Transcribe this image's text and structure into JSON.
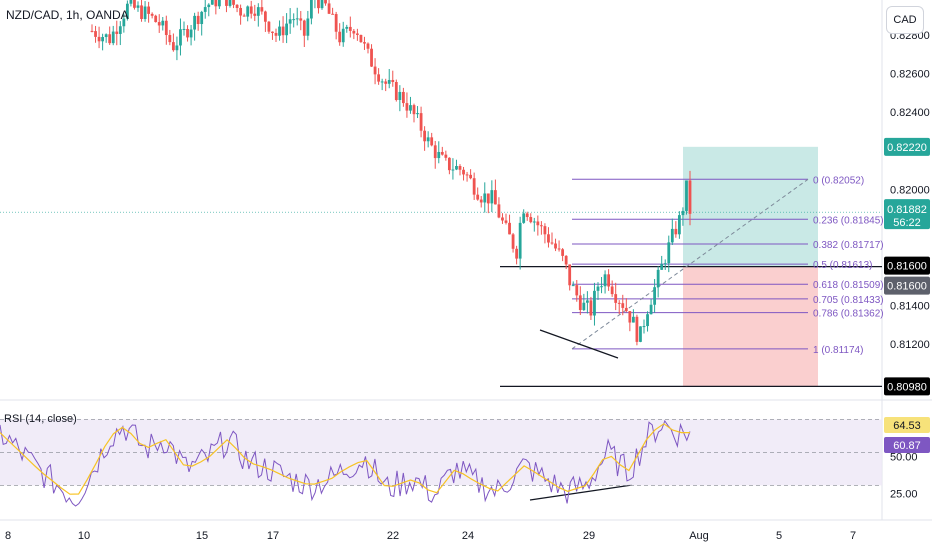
{
  "header": {
    "title": "NZD/CAD, 1h, OANDA",
    "currency": "CAD"
  },
  "rsi_title": "RSI (14, close)",
  "colors": {
    "up": "#26a69a",
    "down": "#ef5350",
    "fib": "#7e57c2",
    "rsi": "#7e57c2",
    "rsi_ma": "#f7c325",
    "profit": "#b2dfdb",
    "loss": "#f8bbbb"
  },
  "chart_data": {
    "type": "candlestick",
    "symbol": "NZD/CAD",
    "timeframe": "1h",
    "ylim": [
      0.8092,
      0.8298
    ],
    "price_ticks": [
      "0.82800",
      "0.82600",
      "0.82400",
      "0.82000",
      "0.81400",
      "0.81200"
    ],
    "x_ticks": [
      "8",
      "10",
      "15",
      "17",
      "22",
      "24",
      "29",
      "Aug",
      "5",
      "7"
    ],
    "price_path": [
      [
        0,
        0.8282
      ],
      [
        0.03,
        0.8278
      ],
      [
        0.06,
        0.8295
      ],
      [
        0.09,
        0.8291
      ],
      [
        0.115,
        0.8285
      ],
      [
        0.135,
        0.8274
      ],
      [
        0.16,
        0.8283
      ],
      [
        0.19,
        0.8295
      ],
      [
        0.22,
        0.83
      ],
      [
        0.25,
        0.8292
      ],
      [
        0.27,
        0.8295
      ],
      [
        0.29,
        0.8288
      ],
      [
        0.31,
        0.8279
      ],
      [
        0.335,
        0.829
      ],
      [
        0.355,
        0.828
      ],
      [
        0.37,
        0.83
      ],
      [
        0.39,
        0.8295
      ],
      [
        0.415,
        0.8278
      ],
      [
        0.44,
        0.8285
      ],
      [
        0.46,
        0.827
      ],
      [
        0.475,
        0.8262
      ],
      [
        0.49,
        0.8255
      ],
      [
        0.52,
        0.8247
      ],
      [
        0.545,
        0.8235
      ],
      [
        0.565,
        0.8223
      ],
      [
        0.59,
        0.8213
      ],
      [
        0.62,
        0.821
      ],
      [
        0.65,
        0.8197
      ],
      [
        0.67,
        0.8195
      ],
      [
        0.69,
        0.818
      ],
      [
        0.71,
        0.8168
      ],
      [
        0.72,
        0.8192
      ],
      [
        0.745,
        0.8182
      ],
      [
        0.77,
        0.8172
      ],
      [
        0.79,
        0.8162
      ],
      [
        0.8,
        0.8151
      ],
      [
        0.82,
        0.814
      ],
      [
        0.835,
        0.8137
      ],
      [
        0.845,
        0.815
      ],
      [
        0.86,
        0.8156
      ],
      [
        0.875,
        0.8146
      ],
      [
        0.89,
        0.814
      ],
      [
        0.905,
        0.8131
      ],
      [
        0.915,
        0.8122
      ],
      [
        0.93,
        0.814
      ],
      [
        0.94,
        0.8148
      ],
      [
        0.955,
        0.8162
      ],
      [
        0.97,
        0.8175
      ],
      [
        0.985,
        0.8186
      ],
      [
        0.995,
        0.8202
      ],
      [
        1,
        0.8189
      ]
    ],
    "current_price": "0.81882",
    "countdown": "56:22",
    "price_labels": [
      "0.82220",
      "0.81600",
      "0.81600",
      "0.80980"
    ],
    "fibonacci": [
      {
        "label": "0 (0.82052)",
        "price": 0.82052
      },
      {
        "label": "0.236 (0.81845)",
        "price": 0.81845
      },
      {
        "label": "0.382 (0.81717)",
        "price": 0.81717
      },
      {
        "label": "0.5 (0.81613)",
        "price": 0.81613
      },
      {
        "label": "0.618 (0.81509)",
        "price": 0.81509
      },
      {
        "label": "0.705 (0.81433)",
        "price": 0.81433
      },
      {
        "label": "0.786 (0.81362)",
        "price": 0.81362
      },
      {
        "label": "1 (0.81174)",
        "price": 0.81174
      }
    ],
    "position": {
      "entry": 0.816,
      "target": 0.8222,
      "stop": 0.8098
    },
    "rsi": {
      "ylim": [
        12,
        80
      ],
      "levels": [
        70,
        50,
        30
      ],
      "ticks": [
        "50.00",
        "25.00"
      ],
      "value": "60.87",
      "ma_value": "64.53",
      "path": [
        [
          0,
          62
        ],
        [
          0.03,
          50
        ],
        [
          0.06,
          38
        ],
        [
          0.09,
          28
        ],
        [
          0.11,
          22
        ],
        [
          0.13,
          36
        ],
        [
          0.16,
          60
        ],
        [
          0.18,
          66
        ],
        [
          0.21,
          52
        ],
        [
          0.24,
          58
        ],
        [
          0.27,
          40
        ],
        [
          0.3,
          46
        ],
        [
          0.33,
          58
        ],
        [
          0.36,
          44
        ],
        [
          0.39,
          40
        ],
        [
          0.42,
          34
        ],
        [
          0.45,
          30
        ],
        [
          0.48,
          34
        ],
        [
          0.5,
          40
        ],
        [
          0.53,
          46
        ],
        [
          0.56,
          28
        ],
        [
          0.6,
          34
        ],
        [
          0.63,
          24
        ],
        [
          0.66,
          40
        ],
        [
          0.69,
          32
        ],
        [
          0.72,
          26
        ],
        [
          0.76,
          42
        ],
        [
          0.79,
          34
        ],
        [
          0.82,
          26
        ],
        [
          0.85,
          30
        ],
        [
          0.88,
          50
        ],
        [
          0.91,
          38
        ],
        [
          0.94,
          60
        ],
        [
          0.96,
          68
        ],
        [
          0.98,
          62
        ],
        [
          1,
          62
        ]
      ]
    }
  }
}
